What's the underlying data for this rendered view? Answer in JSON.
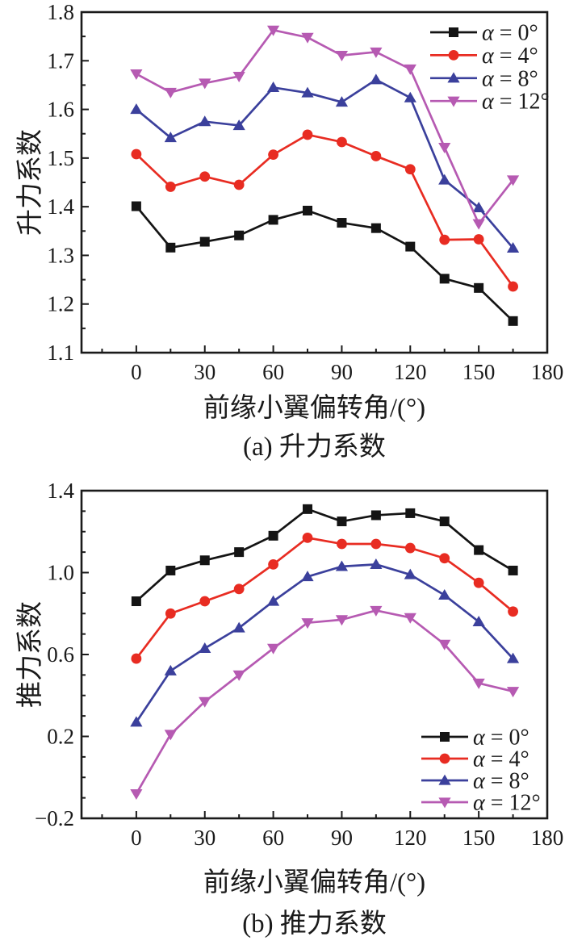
{
  "chart_data": [
    {
      "type": "line",
      "panel_caption": "(a) 升力系数",
      "xlabel": "前缘小翼偏转角/(°)",
      "ylabel": "升力系数",
      "x": [
        0,
        15,
        30,
        45,
        60,
        75,
        90,
        105,
        120,
        135,
        150,
        165
      ],
      "series": [
        {
          "name": "α = 0°",
          "marker": "square",
          "color": "#141414",
          "values": [
            1.401,
            1.316,
            1.328,
            1.341,
            1.373,
            1.392,
            1.367,
            1.356,
            1.318,
            1.252,
            1.233,
            1.165
          ]
        },
        {
          "name": "α = 4°",
          "marker": "circle",
          "color": "#e82c22",
          "values": [
            1.508,
            1.441,
            1.462,
            1.445,
            1.507,
            1.548,
            1.533,
            1.504,
            1.477,
            1.332,
            1.333,
            1.236
          ]
        },
        {
          "name": "α = 8°",
          "marker": "triangle-up",
          "color": "#3b409c",
          "values": [
            1.6,
            1.542,
            1.575,
            1.567,
            1.645,
            1.634,
            1.615,
            1.661,
            1.624,
            1.455,
            1.398,
            1.315
          ]
        },
        {
          "name": "α = 12°",
          "marker": "triangle-down",
          "color": "#b65ab2",
          "values": [
            1.673,
            1.635,
            1.654,
            1.668,
            1.763,
            1.748,
            1.711,
            1.718,
            1.683,
            1.522,
            1.365,
            1.455
          ]
        }
      ],
      "xlim": [
        -24,
        180
      ],
      "ylim": [
        1.1,
        1.8
      ],
      "xticks": [
        0,
        30,
        60,
        90,
        120,
        150,
        180
      ],
      "ytick_labels": [
        "1.1",
        "1.2",
        "1.3",
        "1.4",
        "1.5",
        "1.6",
        "1.7",
        "1.8"
      ],
      "x_minor_step": 15,
      "y_minor_step": 0.05,
      "legend_position": "top-right",
      "grid": false
    },
    {
      "type": "line",
      "panel_caption": "(b) 推力系数",
      "xlabel": "前缘小翼偏转角/(°)",
      "ylabel": "推力系数",
      "x": [
        0,
        15,
        30,
        45,
        60,
        75,
        90,
        105,
        120,
        135,
        150,
        165
      ],
      "series": [
        {
          "name": "α = 0°",
          "marker": "square",
          "color": "#141414",
          "values": [
            0.86,
            1.01,
            1.06,
            1.1,
            1.18,
            1.31,
            1.25,
            1.28,
            1.29,
            1.25,
            1.11,
            1.01
          ]
        },
        {
          "name": "α = 4°",
          "marker": "circle",
          "color": "#e82c22",
          "values": [
            0.58,
            0.8,
            0.86,
            0.92,
            1.04,
            1.17,
            1.14,
            1.14,
            1.12,
            1.07,
            0.95,
            0.81
          ]
        },
        {
          "name": "α = 8°",
          "marker": "triangle-up",
          "color": "#3b409c",
          "values": [
            0.27,
            0.52,
            0.63,
            0.73,
            0.86,
            0.98,
            1.03,
            1.04,
            0.99,
            0.89,
            0.76,
            0.58
          ]
        },
        {
          "name": "α = 12°",
          "marker": "triangle-down",
          "color": "#b65ab2",
          "values": [
            -0.08,
            0.21,
            0.37,
            0.5,
            0.63,
            0.755,
            0.77,
            0.815,
            0.78,
            0.65,
            0.46,
            0.42
          ]
        }
      ],
      "xlim": [
        -24,
        180
      ],
      "ylim": [
        -0.2,
        1.4
      ],
      "xticks": [
        0,
        30,
        60,
        90,
        120,
        150,
        180
      ],
      "ytick_labels": [
        "−0.2",
        "0.2",
        "0.6",
        "1.0",
        "1.4"
      ],
      "x_minor_step": 15,
      "y_minor_step": 0.1,
      "legend_position": "bottom-right",
      "grid": false
    }
  ]
}
